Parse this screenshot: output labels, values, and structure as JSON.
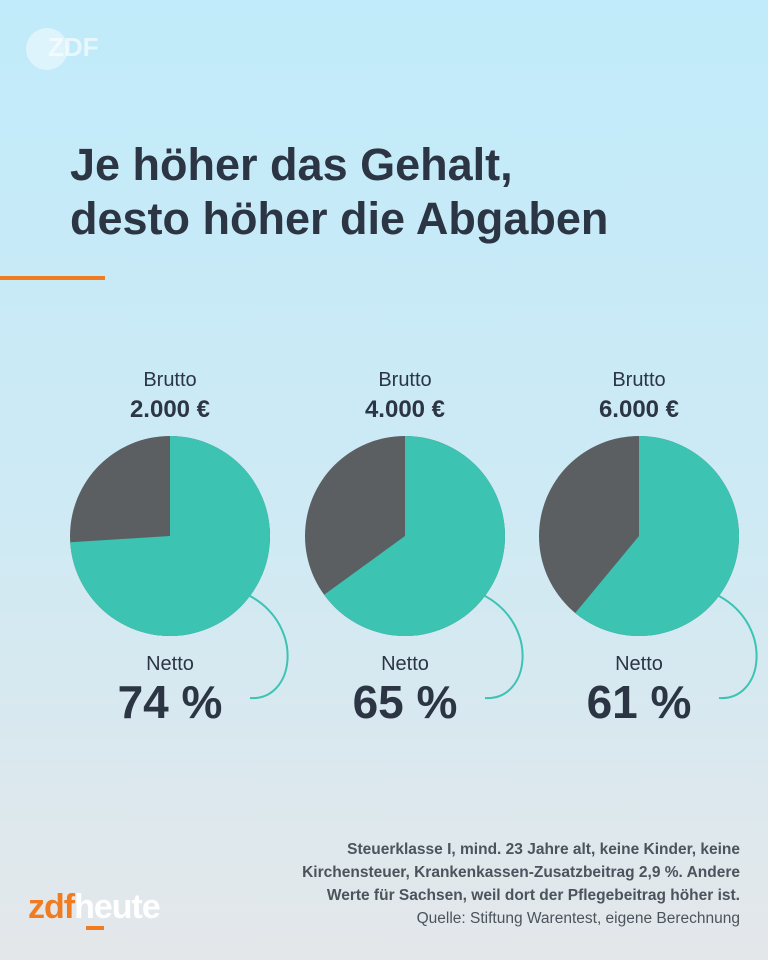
{
  "watermark": "ZDF",
  "title_line1": "Je höher das Gehalt,",
  "title_line2": "desto höher die Abgaben",
  "colors": {
    "netto": "#3cc3b2",
    "abgaben": "#5b5f62",
    "accent": "#f07c22"
  },
  "chart_data": {
    "type": "pie",
    "charts": [
      {
        "label": "Brutto",
        "amount": "2.000 €",
        "netto_label": "Netto",
        "netto_pct": 74,
        "netto_text": "74 %"
      },
      {
        "label": "Brutto",
        "amount": "4.000 €",
        "netto_label": "Netto",
        "netto_pct": 65,
        "netto_text": "65 %"
      },
      {
        "label": "Brutto",
        "amount": "6.000 €",
        "netto_label": "Netto",
        "netto_pct": 61,
        "netto_text": "61 %"
      }
    ]
  },
  "footnote": {
    "line1": "Steuerklasse I, mind. 23 Jahre alt, keine Kinder, keine",
    "line2": "Kirchensteuer, Krankenkassen-Zusatzbeitrag 2,9 %. Andere",
    "line3": "Werte für Sachsen, weil dort der Pflegebeitrag höher ist.",
    "source": "Quelle: Stiftung Warentest, eigene Berechnung"
  },
  "logo": {
    "part1": "zdf",
    "part2": "heute"
  }
}
